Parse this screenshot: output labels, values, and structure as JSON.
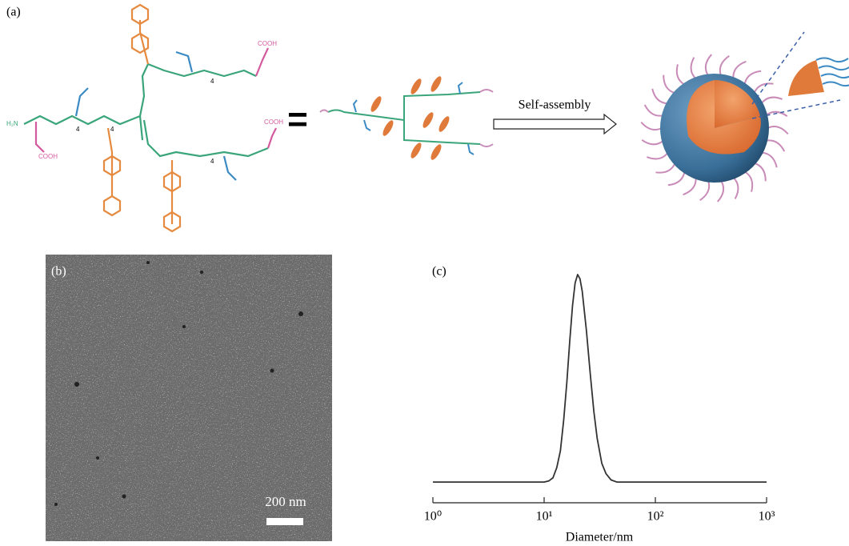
{
  "panel_a": {
    "label": "(a)",
    "equals": "=",
    "arrow_label": "Self-assembly",
    "structure_labels": [
      "H₂N",
      "COOH",
      "COOH",
      "COOH",
      "4",
      "4",
      "4",
      "4"
    ]
  },
  "panel_b": {
    "label": "(b)",
    "scale_bar": "200 nm"
  },
  "chart_data": {
    "type": "line",
    "label": "(c)",
    "x_label": "Diameter/nm",
    "x_scale": "log",
    "x": [
      1,
      5,
      10,
      11,
      12,
      13,
      14,
      15,
      16,
      17,
      18,
      19,
      20,
      21,
      22,
      24,
      26,
      28,
      30,
      33,
      36,
      40,
      45,
      50,
      100,
      1000
    ],
    "series": [
      {
        "color": "#333333",
        "values": [
          0,
          0,
          0,
          0.005,
          0.02,
          0.07,
          0.15,
          0.3,
          0.48,
          0.68,
          0.85,
          0.96,
          1,
          0.98,
          0.92,
          0.73,
          0.52,
          0.34,
          0.21,
          0.09,
          0.04,
          0.01,
          0,
          0,
          0,
          0
        ]
      }
    ],
    "xlim": [
      1,
      1000
    ],
    "ylim": [
      -0.1,
      1.05
    ],
    "xticks": [
      {
        "value": 1,
        "label": "10⁰"
      },
      {
        "value": 10,
        "label": "10¹"
      },
      {
        "value": 100,
        "label": "10²"
      },
      {
        "value": 1000,
        "label": "10³"
      }
    ]
  }
}
